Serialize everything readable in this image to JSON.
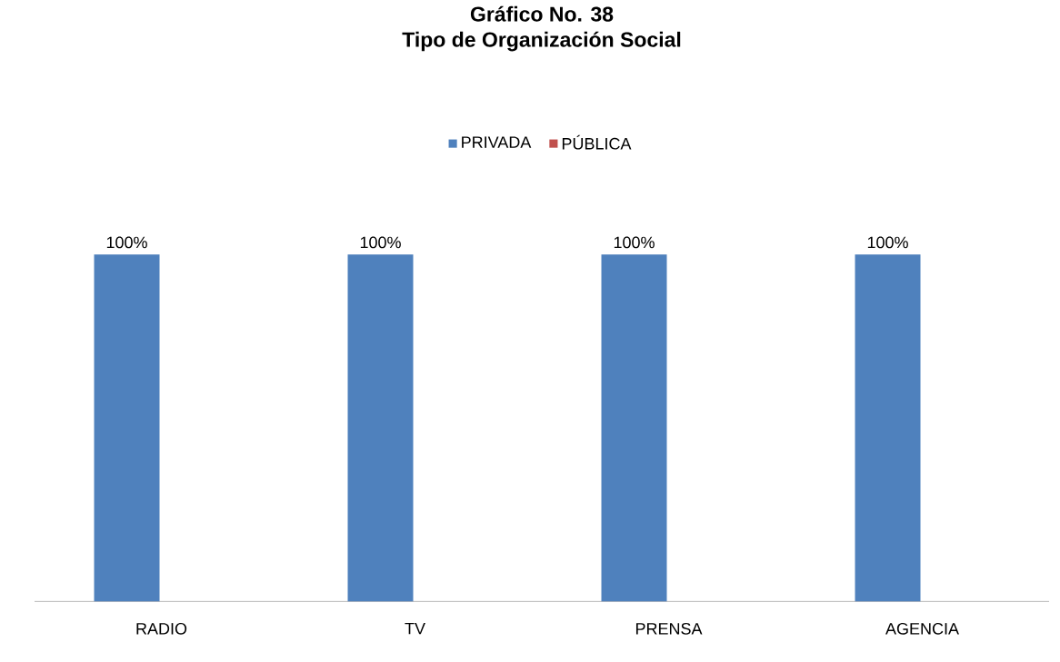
{
  "chart_data": {
    "type": "bar",
    "title": "Gráfico No. 38",
    "subtitle": "Tipo de Organización Social",
    "categories": [
      "RADIO",
      "TV",
      "PRENSA",
      "AGENCIA"
    ],
    "series": [
      {
        "name": "PRIVADA",
        "color": "#4f81bd",
        "values": [
          100,
          100,
          100,
          100
        ],
        "value_labels": [
          "100%",
          "100%",
          "100%",
          "100%"
        ]
      },
      {
        "name": "PÚBLICA",
        "color": "#c0504d",
        "values": [
          0,
          0,
          0,
          0
        ],
        "value_labels": [
          null,
          null,
          null,
          null
        ]
      }
    ],
    "legend": "top"
  }
}
